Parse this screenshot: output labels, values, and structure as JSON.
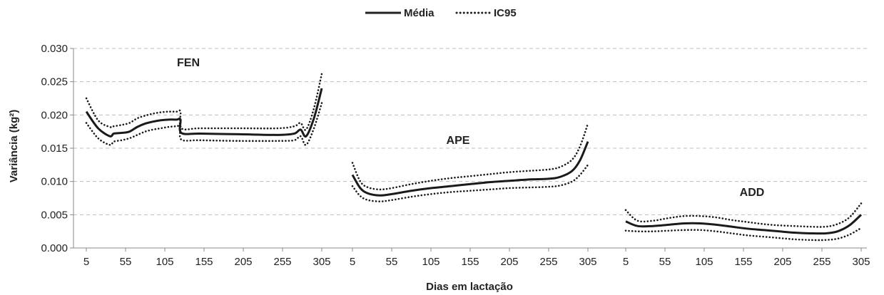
{
  "chart_data": {
    "type": "line",
    "xlabel": "Dias em lactação",
    "ylabel": "Variância (kg²)",
    "ylim": [
      0,
      0.03
    ],
    "yticks": [
      "0.000",
      "0.005",
      "0.010",
      "0.015",
      "0.020",
      "0.025",
      "0.030"
    ],
    "xticks": [
      5,
      55,
      105,
      155,
      205,
      255,
      305
    ],
    "xlim": [
      5,
      305
    ],
    "grid": "horizontal dashed",
    "legend": {
      "placement": "top-center",
      "entries": [
        {
          "label": "Média",
          "style": "solid"
        },
        {
          "label": "IC95",
          "style": "dotted"
        }
      ]
    },
    "panels": [
      {
        "label": "FEN",
        "series": [
          {
            "name": "Média",
            "x": [
              5,
              20,
              35,
              40,
              50,
              60,
              70,
              80,
              90,
              100,
              110,
              120,
              125,
              126,
              150,
              200,
              250,
              270,
              278,
              285,
              295,
              305
            ],
            "y": [
              0.0205,
              0.018,
              0.0168,
              0.0172,
              0.0173,
              0.0175,
              0.0182,
              0.0187,
              0.019,
              0.0192,
              0.0193,
              0.0193,
              0.0193,
              0.0173,
              0.0172,
              0.0171,
              0.017,
              0.0172,
              0.0178,
              0.0168,
              0.0195,
              0.024
            ]
          },
          {
            "name": "IC95 superior",
            "x": [
              5,
              20,
              35,
              40,
              50,
              60,
              70,
              80,
              90,
              100,
              110,
              120,
              125,
              126,
              150,
              200,
              250,
              270,
              278,
              285,
              295,
              305
            ],
            "y": [
              0.0225,
              0.0192,
              0.0182,
              0.0183,
              0.0185,
              0.0188,
              0.0195,
              0.0199,
              0.0202,
              0.0204,
              0.0205,
              0.0205,
              0.0205,
              0.018,
              0.018,
              0.018,
              0.018,
              0.0183,
              0.0188,
              0.0178,
              0.021,
              0.0262
            ]
          },
          {
            "name": "IC95 inferior",
            "x": [
              5,
              20,
              35,
              40,
              50,
              60,
              70,
              80,
              90,
              100,
              110,
              120,
              125,
              126,
              150,
              200,
              250,
              270,
              278,
              285,
              295,
              305
            ],
            "y": [
              0.0188,
              0.0165,
              0.0155,
              0.016,
              0.0162,
              0.0165,
              0.017,
              0.0175,
              0.0178,
              0.018,
              0.0182,
              0.0183,
              0.0183,
              0.0163,
              0.0162,
              0.0161,
              0.0161,
              0.0162,
              0.0168,
              0.0155,
              0.018,
              0.0218
            ]
          }
        ]
      },
      {
        "label": "APE",
        "series": [
          {
            "name": "Média",
            "x": [
              5,
              15,
              25,
              40,
              55,
              80,
              105,
              130,
              155,
              180,
              205,
              230,
              255,
              270,
              285,
              295,
              305
            ],
            "y": [
              0.011,
              0.009,
              0.0082,
              0.0079,
              0.0081,
              0.0086,
              0.009,
              0.0093,
              0.0096,
              0.0099,
              0.0101,
              0.0103,
              0.0104,
              0.0107,
              0.0116,
              0.0132,
              0.016
            ]
          },
          {
            "name": "IC95 superior",
            "x": [
              5,
              15,
              25,
              40,
              55,
              80,
              105,
              130,
              155,
              180,
              205,
              230,
              255,
              270,
              285,
              295,
              305
            ],
            "y": [
              0.0128,
              0.01,
              0.0091,
              0.0088,
              0.009,
              0.0096,
              0.0101,
              0.0105,
              0.0108,
              0.0111,
              0.0114,
              0.0116,
              0.0118,
              0.0122,
              0.0133,
              0.0153,
              0.0187
            ]
          },
          {
            "name": "IC95 inferior",
            "x": [
              5,
              15,
              25,
              40,
              55,
              80,
              105,
              130,
              155,
              180,
              205,
              230,
              255,
              270,
              285,
              295,
              305
            ],
            "y": [
              0.0093,
              0.0078,
              0.0072,
              0.007,
              0.0072,
              0.0077,
              0.0081,
              0.0084,
              0.0086,
              0.0088,
              0.009,
              0.0091,
              0.0092,
              0.0094,
              0.01,
              0.011,
              0.0125
            ]
          }
        ]
      },
      {
        "label": "ADD",
        "series": [
          {
            "name": "Média",
            "x": [
              5,
              20,
              40,
              60,
              80,
              100,
              120,
              140,
              160,
              180,
              200,
              220,
              240,
              260,
              275,
              290,
              305
            ],
            "y": [
              0.004,
              0.0033,
              0.0033,
              0.0035,
              0.0037,
              0.0037,
              0.0035,
              0.0032,
              0.0029,
              0.0027,
              0.0025,
              0.0023,
              0.0022,
              0.0022,
              0.0025,
              0.0034,
              0.005
            ]
          },
          {
            "name": "IC95 superior",
            "x": [
              5,
              20,
              40,
              60,
              80,
              100,
              120,
              140,
              160,
              180,
              200,
              220,
              240,
              260,
              275,
              290,
              305
            ],
            "y": [
              0.0057,
              0.0041,
              0.0041,
              0.0045,
              0.0048,
              0.0048,
              0.0046,
              0.0042,
              0.0039,
              0.0036,
              0.0034,
              0.0033,
              0.0032,
              0.0032,
              0.0036,
              0.0046,
              0.0067
            ]
          },
          {
            "name": "IC95 inferior",
            "x": [
              5,
              20,
              40,
              60,
              80,
              100,
              120,
              140,
              160,
              180,
              200,
              220,
              240,
              260,
              275,
              290,
              305
            ],
            "y": [
              0.0026,
              0.0025,
              0.0025,
              0.0026,
              0.0027,
              0.0027,
              0.0025,
              0.0022,
              0.0019,
              0.0017,
              0.0015,
              0.0013,
              0.0012,
              0.0012,
              0.0014,
              0.002,
              0.003
            ]
          }
        ]
      }
    ]
  }
}
